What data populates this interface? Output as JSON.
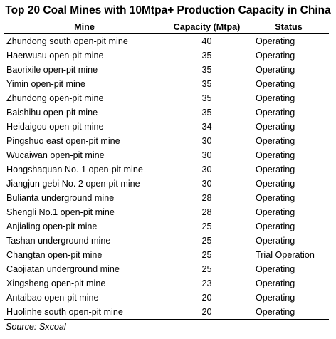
{
  "title": "Top 20 Coal Mines with 10Mtpa+ Production Capacity in China",
  "table": {
    "headers": [
      "Mine",
      "Capacity (Mtpa)",
      "Status"
    ],
    "rows": [
      {
        "mine": "Zhundong south open-pit mine",
        "capacity": "40",
        "status": "Operating"
      },
      {
        "mine": "Haerwusu open-pit mine",
        "capacity": "35",
        "status": "Operating"
      },
      {
        "mine": "Baorixile open-pit mine",
        "capacity": "35",
        "status": "Operating"
      },
      {
        "mine": "Yimin open-pit mine",
        "capacity": "35",
        "status": "Operating"
      },
      {
        "mine": "Zhundong open-pit mine",
        "capacity": "35",
        "status": "Operating"
      },
      {
        "mine": "Baishihu open-pit mine",
        "capacity": "35",
        "status": "Operating"
      },
      {
        "mine": "Heidaigou open-pit mine",
        "capacity": "34",
        "status": "Operating"
      },
      {
        "mine": "Pingshuo east open-pit mine",
        "capacity": "30",
        "status": "Operating"
      },
      {
        "mine": "Wucaiwan open-pit mine",
        "capacity": "30",
        "status": "Operating"
      },
      {
        "mine": "Hongshaquan No. 1 open-pit mine",
        "capacity": "30",
        "status": "Operating"
      },
      {
        "mine": "Jiangjun gebi No. 2 open-pit mine",
        "capacity": "30",
        "status": "Operating"
      },
      {
        "mine": "Bulianta underground mine",
        "capacity": "28",
        "status": "Operating"
      },
      {
        "mine": "Shengli No.1 open-pit mine",
        "capacity": "28",
        "status": "Operating"
      },
      {
        "mine": "Anjialing open-pit mine",
        "capacity": "25",
        "status": "Operating"
      },
      {
        "mine": "Tashan underground mine",
        "capacity": "25",
        "status": "Operating"
      },
      {
        "mine": "Changtan open-pit mine",
        "capacity": "25",
        "status": "Trial Operation"
      },
      {
        "mine": "Caojiatan underground mine",
        "capacity": "25",
        "status": "Operating"
      },
      {
        "mine": "Xingsheng open-pit mine",
        "capacity": "23",
        "status": "Operating"
      },
      {
        "mine": "Antaibao open-pit mine",
        "capacity": "20",
        "status": "Operating"
      },
      {
        "mine": "Huolinhe south open-pit mine",
        "capacity": "20",
        "status": "Operating"
      }
    ]
  },
  "source": "Source: Sxcoal"
}
